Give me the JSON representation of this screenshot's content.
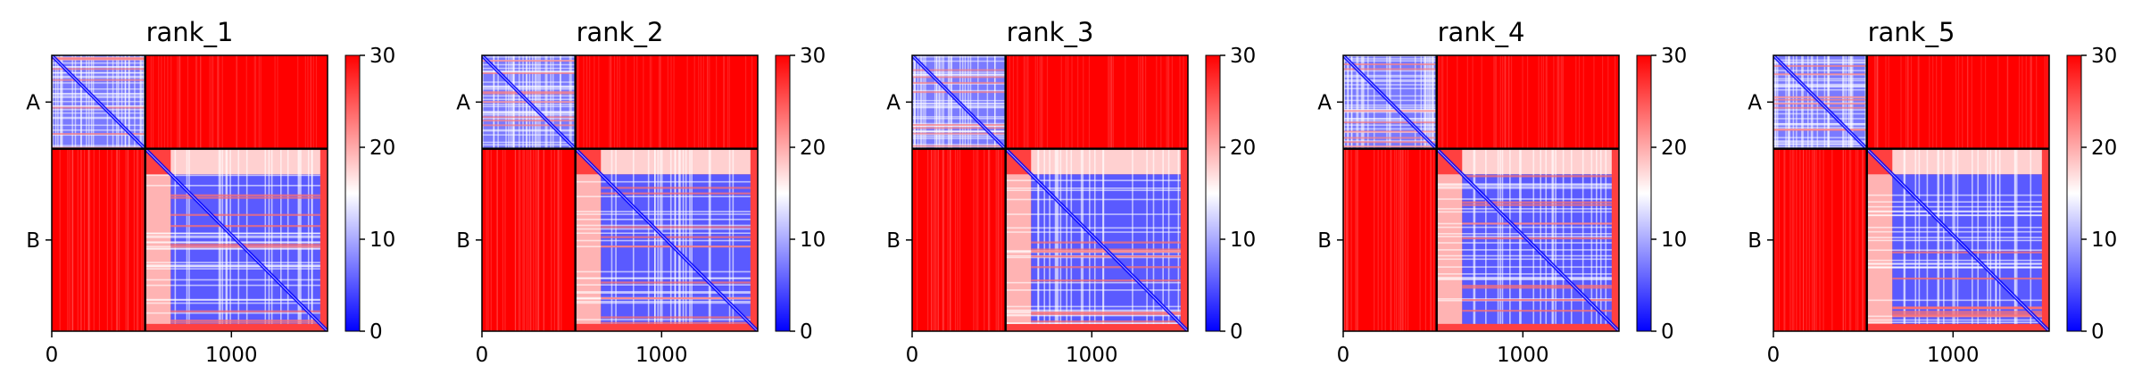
{
  "chart_data": [
    {
      "type": "heatmap",
      "title": "rank_1",
      "xlabel": "",
      "ylabel": "",
      "xlim": [
        0,
        1535
      ],
      "x_ticks": [
        0,
        1000
      ],
      "y_tick_labels": [
        "A",
        "B"
      ],
      "chains": [
        {
          "name": "A",
          "start": 0,
          "end": 520
        },
        {
          "name": "B",
          "start": 520,
          "end": 1535
        }
      ],
      "colorbar": {
        "min": 0,
        "max": 30,
        "ticks": [
          0,
          10,
          20,
          30
        ],
        "colormap": "bwr",
        "colors": [
          "#0000ff",
          "#ffffff",
          "#ff0000"
        ]
      }
    },
    {
      "type": "heatmap",
      "title": "rank_2",
      "xlabel": "",
      "ylabel": "",
      "xlim": [
        0,
        1535
      ],
      "x_ticks": [
        0,
        1000
      ],
      "y_tick_labels": [
        "A",
        "B"
      ],
      "chains": [
        {
          "name": "A",
          "start": 0,
          "end": 520
        },
        {
          "name": "B",
          "start": 520,
          "end": 1535
        }
      ],
      "colorbar": {
        "min": 0,
        "max": 30,
        "ticks": [
          0,
          10,
          20,
          30
        ],
        "colormap": "bwr",
        "colors": [
          "#0000ff",
          "#ffffff",
          "#ff0000"
        ]
      }
    },
    {
      "type": "heatmap",
      "title": "rank_3",
      "xlabel": "",
      "ylabel": "",
      "xlim": [
        0,
        1535
      ],
      "x_ticks": [
        0,
        1000
      ],
      "y_tick_labels": [
        "A",
        "B"
      ],
      "chains": [
        {
          "name": "A",
          "start": 0,
          "end": 520
        },
        {
          "name": "B",
          "start": 520,
          "end": 1535
        }
      ],
      "colorbar": {
        "min": 0,
        "max": 30,
        "ticks": [
          0,
          10,
          20,
          30
        ],
        "colormap": "bwr",
        "colors": [
          "#0000ff",
          "#ffffff",
          "#ff0000"
        ]
      }
    },
    {
      "type": "heatmap",
      "title": "rank_4",
      "xlabel": "",
      "ylabel": "",
      "xlim": [
        0,
        1535
      ],
      "x_ticks": [
        0,
        1000
      ],
      "y_tick_labels": [
        "A",
        "B"
      ],
      "chains": [
        {
          "name": "A",
          "start": 0,
          "end": 520
        },
        {
          "name": "B",
          "start": 520,
          "end": 1535
        }
      ],
      "colorbar": {
        "min": 0,
        "max": 30,
        "ticks": [
          0,
          10,
          20,
          30
        ],
        "colormap": "bwr",
        "colors": [
          "#0000ff",
          "#ffffff",
          "#ff0000"
        ]
      }
    },
    {
      "type": "heatmap",
      "title": "rank_5",
      "xlabel": "",
      "ylabel": "",
      "xlim": [
        0,
        1535
      ],
      "x_ticks": [
        0,
        1000
      ],
      "y_tick_labels": [
        "A",
        "B"
      ],
      "chains": [
        {
          "name": "A",
          "start": 0,
          "end": 520
        },
        {
          "name": "B",
          "start": 520,
          "end": 1535
        }
      ],
      "colorbar": {
        "min": 0,
        "max": 30,
        "ticks": [
          0,
          10,
          20,
          30
        ],
        "colormap": "bwr",
        "colors": [
          "#0000ff",
          "#ffffff",
          "#ff0000"
        ]
      }
    }
  ]
}
